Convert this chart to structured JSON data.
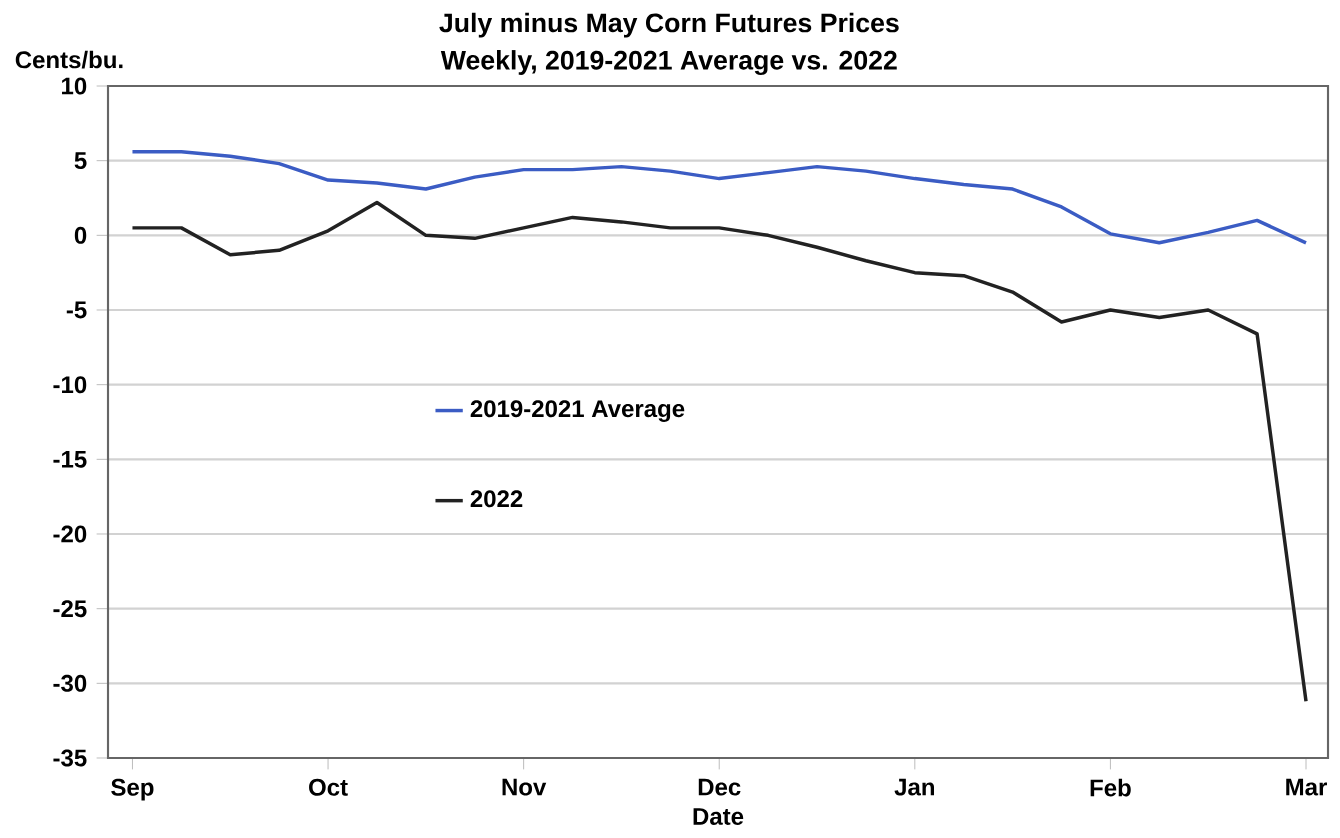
{
  "chart_data": {
    "type": "line",
    "title": "July minus May Corn Futures Prices",
    "subtitle": "Weekly, 2019-2021 Average vs. 2022",
    "ylabel": "Cents/bu.",
    "xlabel": "Date",
    "categories": [
      "Sep",
      null,
      null,
      null,
      "Oct",
      null,
      null,
      null,
      "Nov",
      null,
      null,
      null,
      "Dec",
      null,
      null,
      null,
      "Jan",
      null,
      null,
      null,
      "Feb",
      null,
      null,
      null,
      "Mar"
    ],
    "series": [
      {
        "name": "2019-2021 Average",
        "color": "#3b5cc4",
        "values": [
          5.6,
          5.6,
          5.3,
          4.8,
          3.7,
          3.5,
          3.1,
          3.9,
          4.4,
          4.4,
          4.6,
          4.3,
          3.8,
          4.2,
          4.6,
          4.3,
          3.8,
          3.4,
          3.1,
          1.9,
          0.1,
          -0.5,
          0.2,
          1.0,
          -0.5
        ]
      },
      {
        "name": "2022",
        "color": "#222222",
        "values": [
          0.5,
          0.5,
          -1.3,
          -1.0,
          0.3,
          2.2,
          0.0,
          -0.2,
          0.5,
          1.2,
          0.9,
          0.5,
          0.5,
          0.0,
          -0.8,
          -1.7,
          -2.5,
          -2.7,
          -3.8,
          -5.8,
          -5.0,
          -5.5,
          -5.0,
          -6.6,
          -31.2
        ]
      }
    ],
    "ylim": [
      -35,
      10
    ],
    "yticks": [
      -35,
      -30,
      -25,
      -20,
      -15,
      -10,
      -5,
      0,
      5,
      10
    ],
    "grid": "y",
    "legend": "center",
    "marker": "none",
    "line_style": "solid"
  }
}
